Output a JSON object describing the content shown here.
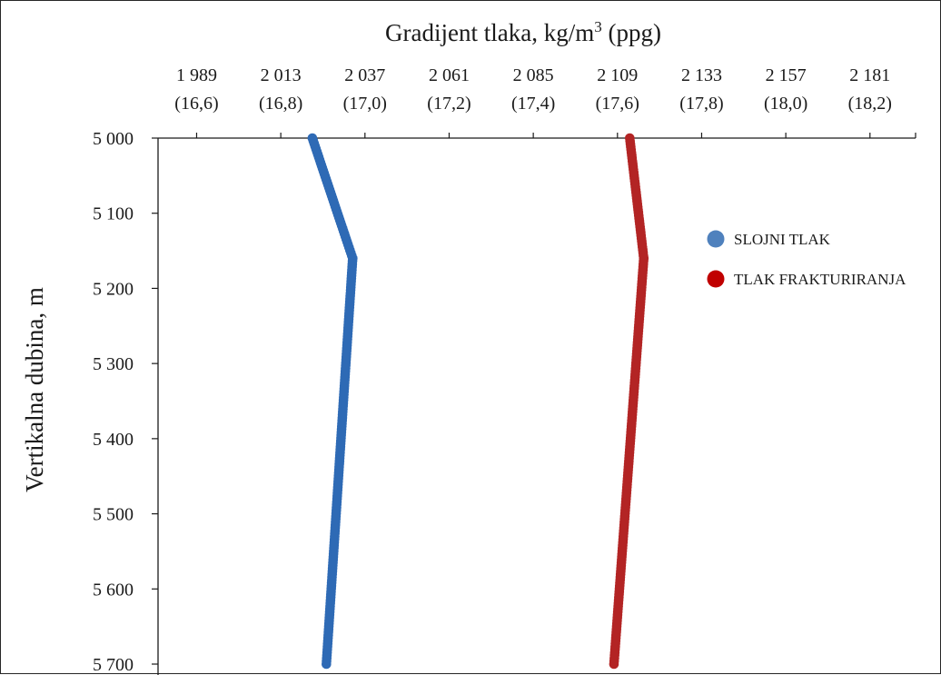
{
  "chart_data": {
    "type": "line",
    "title": "Gradijent tlaka, kg/m",
    "title_superscript": "3",
    "title_suffix": " (ppg)",
    "xlabel": "Gradijent tlaka, kg/m³ (ppg)",
    "ylabel": "Vertikalna dubina, m",
    "x_axis_position": "top",
    "y_axis_inverted": true,
    "xlim": [
      1978,
      2194
    ],
    "ylim": [
      5000,
      5700
    ],
    "grid": false,
    "legend_position": "right",
    "x_ticks": [
      {
        "value": 1989,
        "label": "1 989",
        "sublabel": "(16,6)"
      },
      {
        "value": 2013,
        "label": "2 013",
        "sublabel": "(16,8)"
      },
      {
        "value": 2037,
        "label": "2 037",
        "sublabel": "(17,0)"
      },
      {
        "value": 2061,
        "label": "2 061",
        "sublabel": "(17,2)"
      },
      {
        "value": 2085,
        "label": "2 085",
        "sublabel": "(17,4)"
      },
      {
        "value": 2109,
        "label": "2 109",
        "sublabel": "(17,6)"
      },
      {
        "value": 2133,
        "label": "2 133",
        "sublabel": "(17,8)"
      },
      {
        "value": 2157,
        "label": "2 157",
        "sublabel": "(18,0)"
      },
      {
        "value": 2181,
        "label": "2 181",
        "sublabel": "(18,2)"
      }
    ],
    "y_ticks": [
      {
        "value": 5000,
        "label": "5 000"
      },
      {
        "value": 5100,
        "label": "5 100"
      },
      {
        "value": 5200,
        "label": "5 200"
      },
      {
        "value": 5300,
        "label": "5 300"
      },
      {
        "value": 5400,
        "label": "5 400"
      },
      {
        "value": 5500,
        "label": "5 500"
      },
      {
        "value": 5600,
        "label": "5 600"
      },
      {
        "value": 5700,
        "label": "5 700"
      }
    ],
    "series": [
      {
        "name": "SLOJNI TLAK",
        "color": "#2e6ab5",
        "legend_color": "#4f81bd",
        "points": [
          {
            "depth": 5000,
            "value": 2022
          },
          {
            "depth": 5160,
            "value": 2033.5
          },
          {
            "depth": 5700,
            "value": 2026
          }
        ]
      },
      {
        "name": "TLAK FRAKTURIRANJA",
        "color": "#b32424",
        "legend_color": "#c00000",
        "points": [
          {
            "depth": 5000,
            "value": 2112.5
          },
          {
            "depth": 5160,
            "value": 2116.5
          },
          {
            "depth": 5700,
            "value": 2108
          }
        ]
      }
    ]
  }
}
